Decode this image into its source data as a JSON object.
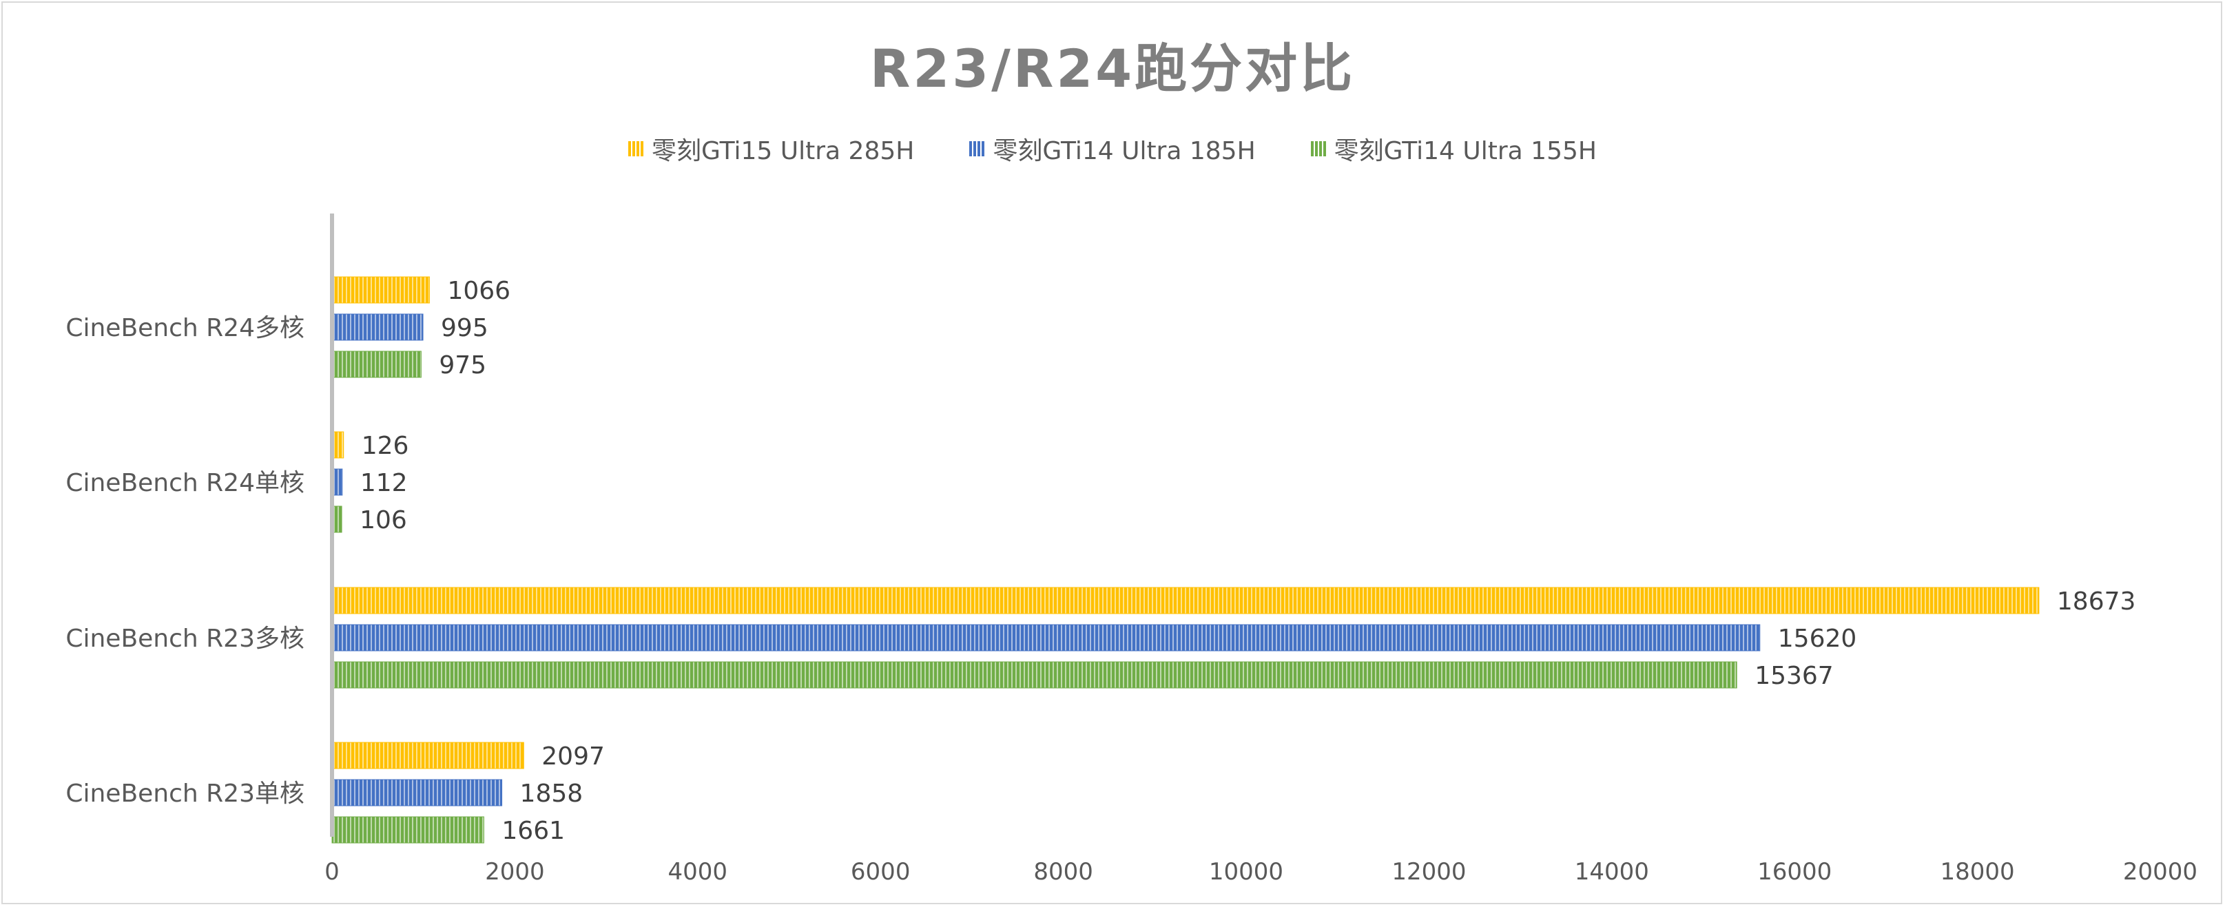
{
  "chart_data": {
    "type": "bar",
    "orientation": "horizontal",
    "title": "R23/R24跑分对比",
    "categories": [
      "CineBench R24多核",
      "CineBench R24单核",
      "CineBench R23多核",
      "CineBench R23单核"
    ],
    "series": [
      {
        "name": "零刻GTi15 Ultra 285H",
        "color": "#ffc000",
        "values": [
          1066,
          126,
          18673,
          2097
        ]
      },
      {
        "name": "零刻GTi14 Ultra 185H",
        "color": "#4472c4",
        "values": [
          995,
          112,
          15620,
          1858
        ]
      },
      {
        "name": "零刻GTi14 Ultra 155H",
        "color": "#70ad47",
        "values": [
          975,
          106,
          15367,
          1661
        ]
      }
    ],
    "xlim": [
      0,
      20000
    ],
    "xticks": [
      0,
      2000,
      4000,
      6000,
      8000,
      10000,
      12000,
      14000,
      16000,
      18000,
      20000
    ],
    "legend_position": "top",
    "grid": false,
    "data_labels": true,
    "bar_pattern": "vertical-stripes"
  }
}
